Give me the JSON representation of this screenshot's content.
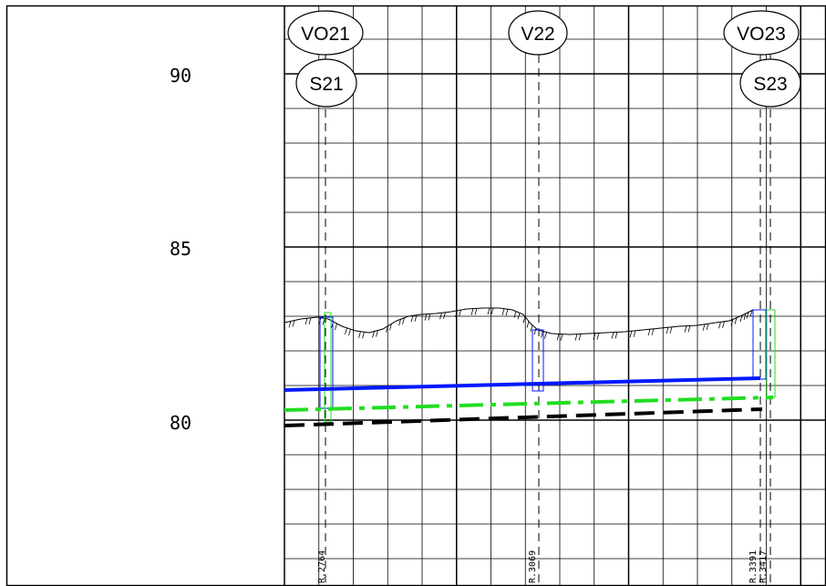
{
  "elevation_labels": [
    "90",
    "85",
    "80"
  ],
  "nodes_top": [
    "VO21",
    "V22",
    "VO23"
  ],
  "nodes_second": [
    "S21",
    "S23"
  ],
  "station_labels": [
    "R.2764",
    "R.3069",
    "R.3391",
    "R.3417"
  ],
  "colors": {
    "grid": "#000000",
    "pipe": "#0018ff",
    "green_line": "#22dd22",
    "dashed_line": "#000000",
    "terrain": "#000000"
  }
}
